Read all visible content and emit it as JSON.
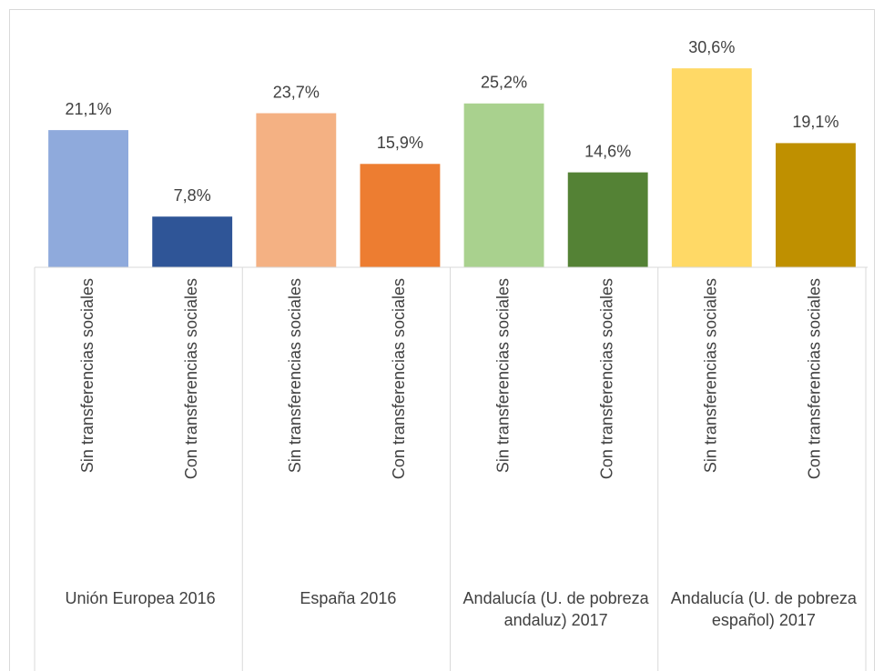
{
  "chart_data": {
    "type": "bar",
    "categories": [
      "Sin transferencias sociales",
      "Con transferencias sociales",
      "Sin transferencias sociales",
      "Con transferencias sociales",
      "Sin transferencias sociales",
      "Con transferencias sociales",
      "Sin transferencias sociales",
      "Con transferencias sociales"
    ],
    "groups": [
      "Unión Europea 2016",
      "España 2016",
      "Andalucía (U. de pobreza andaluz) 2017",
      "Andalucía (U. de pobreza español) 2017"
    ],
    "values": [
      21.1,
      7.8,
      23.7,
      15.9,
      25.2,
      14.6,
      30.6,
      19.1
    ],
    "value_labels": [
      "21,1%",
      "7,8%",
      "23,7%",
      "15,9%",
      "25,2%",
      "14,6%",
      "30,6%",
      "19,1%"
    ],
    "colors": [
      "#8faadc",
      "#2f5597",
      "#f4b183",
      "#ed7d31",
      "#a9d18e",
      "#548235",
      "#ffd966",
      "#bf9000"
    ],
    "ylim": [
      0,
      33
    ]
  }
}
